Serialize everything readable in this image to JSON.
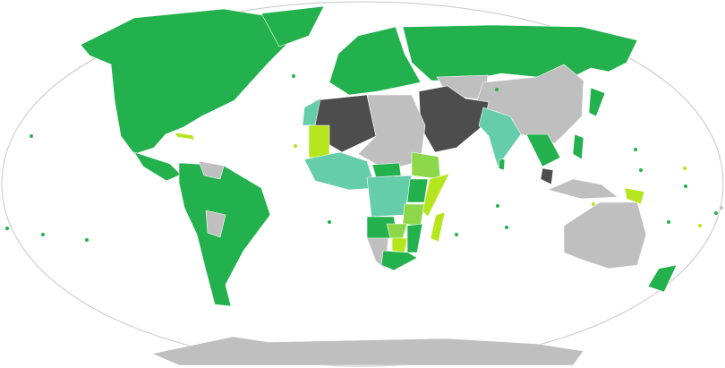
{
  "map": {
    "colors": {
      "green": "#22b14c",
      "light_green": "#8cd84a",
      "yellow_green": "#b5e61d",
      "teal": "#66cdaa",
      "dark_gray": "#4d4d4d",
      "gray": "#bfbfbf",
      "outline": "#c8c8c8",
      "ocean": "#ffffff"
    }
  }
}
